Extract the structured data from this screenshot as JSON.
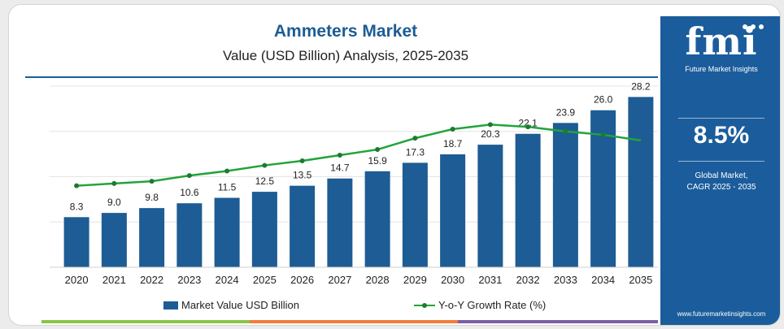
{
  "colors": {
    "bar": "#1d5c94",
    "line": "#23a33c",
    "marker": "#1d7a30",
    "panel": "#1b5d9c",
    "stripes": [
      "#8bc34a",
      "#f57c3a",
      "#7b5ea7"
    ]
  },
  "side_panel": {
    "logo": "fmi",
    "logo_subtitle": "Future Market Insights",
    "cagr_value": "8.5%",
    "cagr_label_line1": "Global Market,",
    "cagr_label_line2": "CAGR 2025 - 2035",
    "website": "www.futuremarketinsights.com"
  },
  "chart_data": {
    "type": "bar",
    "title": "Ammeters Market",
    "subtitle": "Value (USD Billion) Analysis, 2025-2035",
    "categories": [
      "2020",
      "2021",
      "2022",
      "2023",
      "2024",
      "2025",
      "2026",
      "2027",
      "2028",
      "2029",
      "2030",
      "2031",
      "2032",
      "2033",
      "2034",
      "2035"
    ],
    "series": [
      {
        "name": "Market Value USD Billion",
        "type": "bar",
        "values": [
          8.3,
          9.0,
          9.8,
          10.6,
          11.5,
          12.5,
          13.5,
          14.7,
          15.9,
          17.3,
          18.7,
          20.3,
          22.1,
          23.9,
          26.0,
          28.2
        ],
        "labels": [
          "8.3",
          "9.0",
          "9.8",
          "10.6",
          "11.5",
          "12.5",
          "13.5",
          "14.7",
          "15.9",
          "17.3",
          "18.7",
          "20.3",
          "22.1",
          "23.9",
          "26.0",
          "28.2"
        ]
      },
      {
        "name": "Y-o-Y Growth Rate (%)",
        "type": "line",
        "values": [
          7.2,
          7.4,
          7.6,
          8.1,
          8.5,
          9.0,
          9.4,
          9.9,
          10.4,
          11.4,
          12.2,
          12.6,
          12.4,
          12.0,
          11.7,
          11.2
        ]
      }
    ],
    "ylim": [
      0,
      30
    ],
    "y2lim": [
      0,
      16
    ],
    "grid": true,
    "legend": "bottom"
  }
}
